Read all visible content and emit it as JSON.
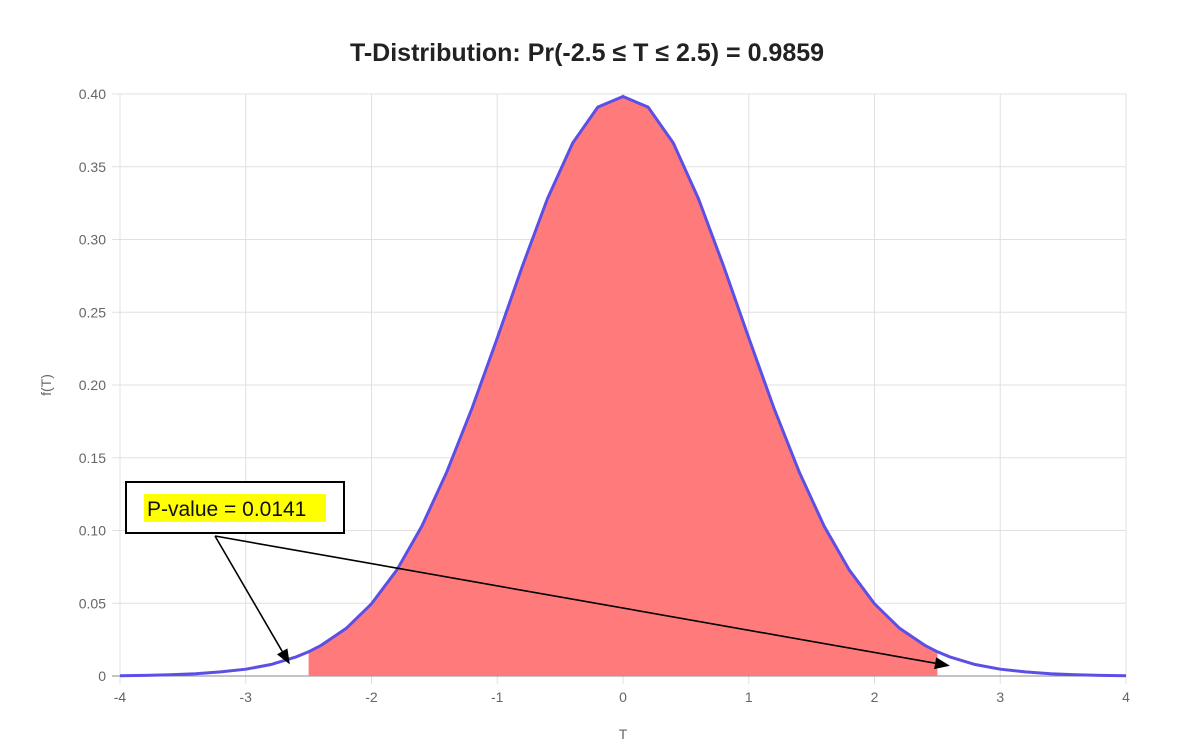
{
  "chart_data": {
    "type": "area",
    "title": "T-Distribution: Pr(-2.5 ≤ T ≤ 2.5) = 0.9859",
    "xlabel": "T",
    "ylabel": "f(T)",
    "xlim": [
      -4,
      4
    ],
    "ylim": [
      0,
      0.4
    ],
    "x_ticks": [
      -4,
      -3,
      -2,
      -1,
      0,
      1,
      2,
      3,
      4
    ],
    "x_tick_labels": [
      "-4",
      "-3",
      "-2",
      "-1",
      "0",
      "1",
      "2",
      "3",
      "4"
    ],
    "y_ticks": [
      0,
      0.05,
      0.1,
      0.15,
      0.2,
      0.25,
      0.3,
      0.35,
      0.4
    ],
    "y_tick_labels": [
      "0",
      "0.05",
      "0.10",
      "0.15",
      "0.20",
      "0.25",
      "0.30",
      "0.35",
      "0.40"
    ],
    "grid": true,
    "shaded_interval": [
      -2.5,
      2.5
    ],
    "curve": {
      "x": [
        -4,
        -3.8,
        -3.6,
        -3.4,
        -3.2,
        -3,
        -2.8,
        -2.6,
        -2.5,
        -2.4,
        -2.2,
        -2,
        -1.8,
        -1.6,
        -1.4,
        -1.2,
        -1,
        -0.8,
        -0.6,
        -0.4,
        -0.2,
        0,
        0.2,
        0.4,
        0.6,
        0.8,
        1,
        1.2,
        1.4,
        1.6,
        1.8,
        2,
        2.2,
        2.4,
        2.5,
        2.6,
        2.8,
        3,
        3.2,
        3.4,
        3.6,
        3.8,
        4
      ],
      "y": [
        0.0002,
        0.0004,
        0.0008,
        0.0016,
        0.0028,
        0.0047,
        0.0079,
        0.0131,
        0.0166,
        0.0211,
        0.0328,
        0.0496,
        0.0727,
        0.1029,
        0.1404,
        0.1842,
        0.2323,
        0.2817,
        0.3281,
        0.3663,
        0.391,
        0.3983,
        0.391,
        0.3663,
        0.3281,
        0.2817,
        0.2323,
        0.1842,
        0.1404,
        0.1029,
        0.0727,
        0.0496,
        0.0328,
        0.0211,
        0.0166,
        0.0131,
        0.0079,
        0.0047,
        0.0028,
        0.0016,
        0.0008,
        0.0004,
        0.0002
      ]
    },
    "annotation": {
      "text": "P-value = 0.0141",
      "arrow_targets": [
        [
          -2.65,
          0.008
        ],
        [
          2.6,
          0.007
        ]
      ]
    },
    "colors": {
      "line": "#5b4fe6",
      "fill": "#ff7b7b",
      "highlight": "#ffff00",
      "grid": "#e0e0e0",
      "zero_line": "#888888"
    }
  }
}
